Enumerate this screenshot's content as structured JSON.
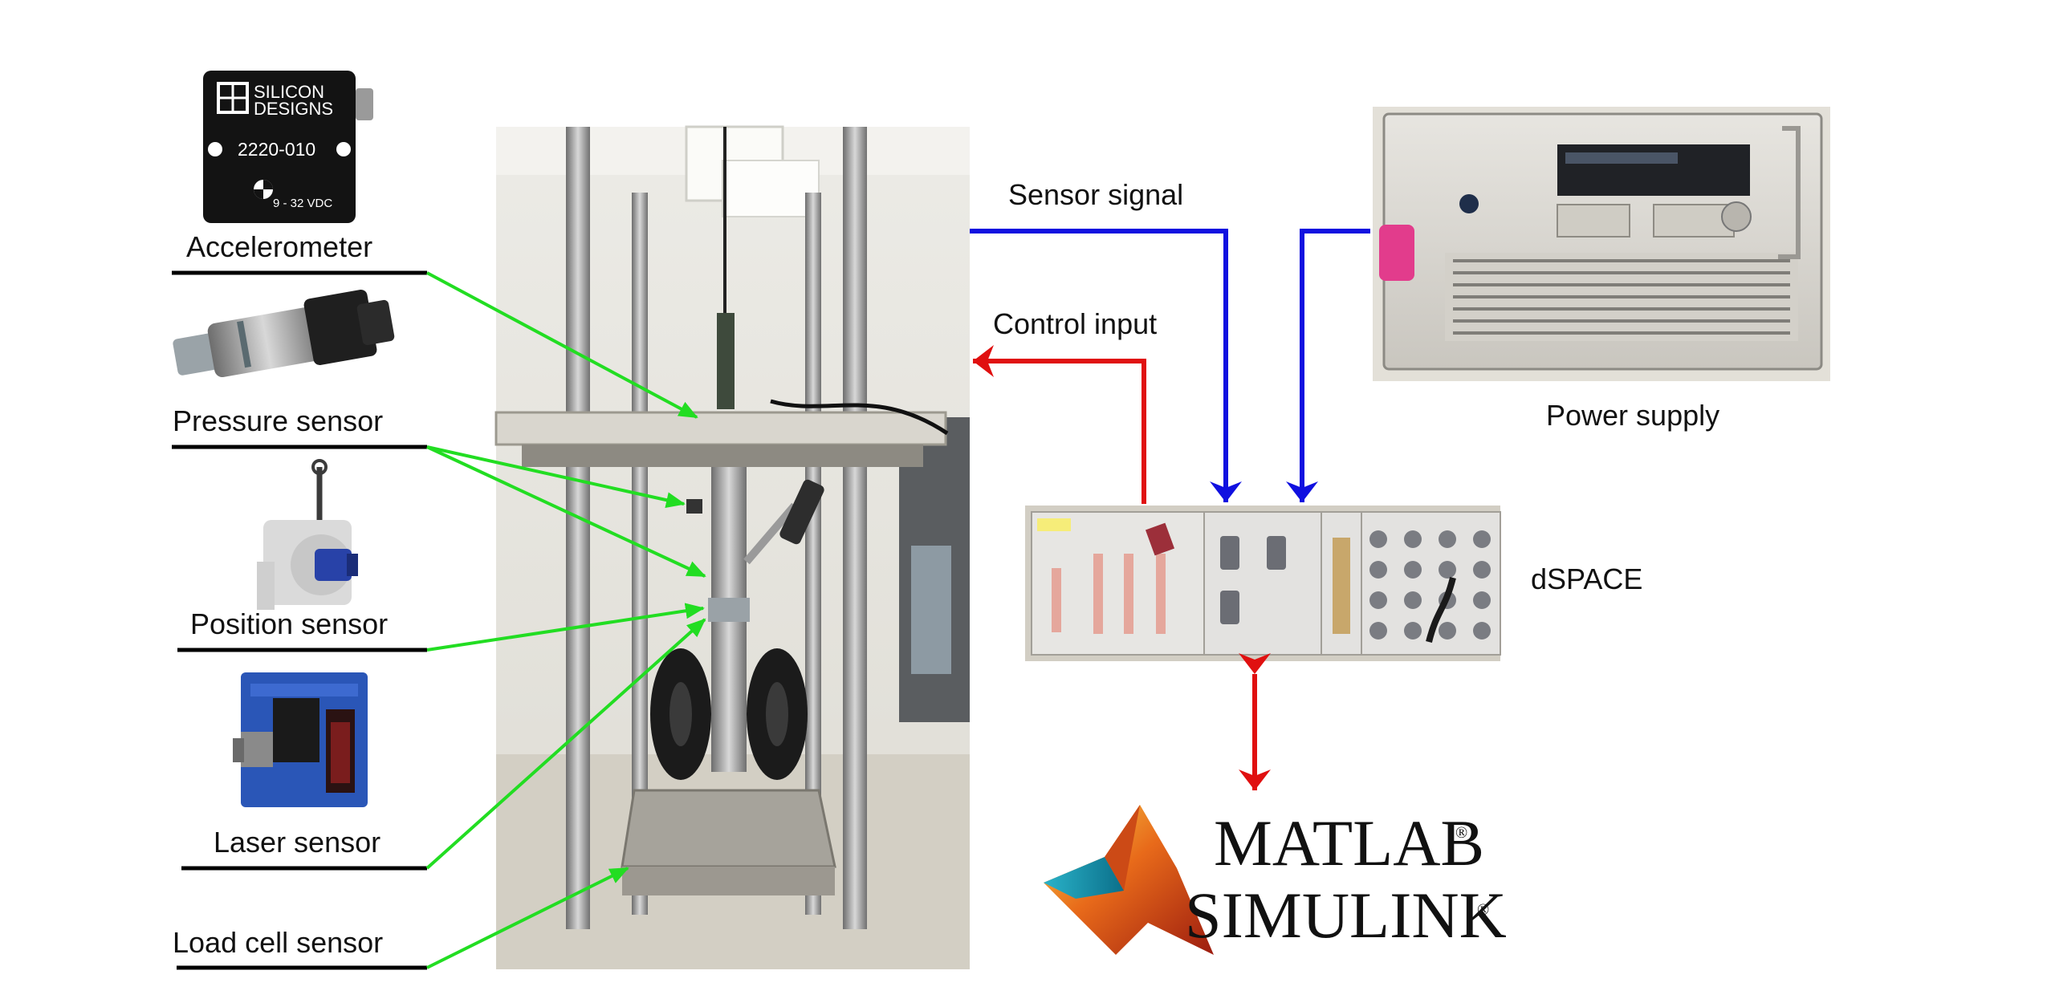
{
  "labels": {
    "accelerometer": "Accelerometer",
    "pressure_sensor": "Pressure sensor",
    "position_sensor": "Position sensor",
    "laser_sensor": "Laser sensor",
    "load_cell_sensor": "Load cell sensor",
    "sensor_signal": "Sensor signal",
    "control_input": "Control input",
    "power_supply": "Power supply",
    "dspace": "dSPACE"
  },
  "accelerometer_device": {
    "brand_line1": "SILICON",
    "brand_line2": "DESIGNS",
    "model": "2220-010",
    "voltage": "9 - 32 VDC"
  },
  "matlab_logo": {
    "line1": "MATLAB",
    "line2": "SIMULINK",
    "mark": "®"
  },
  "colors": {
    "sensor_links": "#22dd22",
    "signal_arrows": "#1010e0",
    "control_arrow": "#e01010",
    "bidirectional_arrow": "#e01010"
  }
}
